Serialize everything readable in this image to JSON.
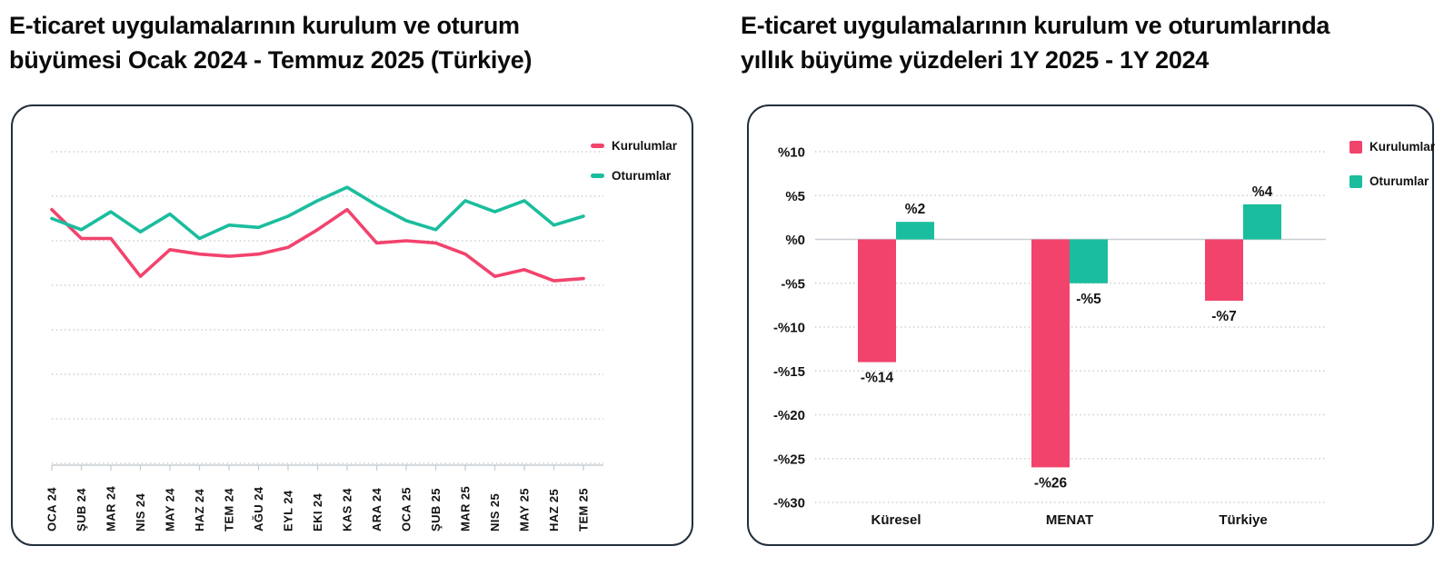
{
  "page": {
    "background": "#ffffff"
  },
  "colors": {
    "kurulumlar_pink": "#F2436D",
    "oturumlar_teal": "#1ABD9E",
    "grid_dotted": "#c5c9cf",
    "axis_line": "#c9cdd2",
    "text": "#121212",
    "card_border": "#232e3b"
  },
  "left_panel": {
    "title": "E-ticaret uygulamalarının kurulum ve oturum\nbüyümesi Ocak 2024 - Temmuz 2025 (Türkiye)"
  },
  "right_panel": {
    "title": "E-ticaret uygulamalarının kurulum ve oturumlarında\nyıllık büyüme yüzdeleri 1Y 2025 - 1Y 2024"
  },
  "chart_data": [
    {
      "type": "line",
      "title": "E-ticaret uygulamalarının kurulum ve oturum büyümesi Ocak 2024 - Temmuz 2025 (Türkiye)",
      "categories": [
        "OCA 24",
        "ŞUB 24",
        "MAR 24",
        "NIS 24",
        "MAY 24",
        "HAZ 24",
        "TEM 24",
        "AĞU 24",
        "EYL 24",
        "EKI 24",
        "KAS 24",
        "ARA 24",
        "OCA 25",
        "ŞUB 25",
        "MAR 25",
        "NIS 25",
        "MAY 25",
        "HAZ 25",
        "TEM 25"
      ],
      "series": [
        {
          "name": "Kurulumlar",
          "color": "#F2436D",
          "values": [
            57,
            50.5,
            50.5,
            42,
            48,
            47,
            46.5,
            47,
            48.5,
            52.5,
            57,
            49.5,
            50,
            49.5,
            47,
            42,
            43.5,
            41,
            41.5
          ]
        },
        {
          "name": "Oturumlar",
          "color": "#1ABD9E",
          "values": [
            55,
            52.5,
            56.5,
            52,
            56,
            50.5,
            53.5,
            53,
            55.5,
            59,
            62,
            58,
            54.5,
            52.5,
            59,
            56.5,
            59,
            53.5,
            55.5
          ]
        }
      ],
      "y_axis": {
        "labels_visible": false,
        "gridline_count": 8,
        "grid_step": 10,
        "range": [
          0,
          75
        ],
        "note": "y axis is unlabeled in the source; series values are estimated on a relative scale where the dotted gridlines sit 10 units apart above the baseline"
      },
      "legend_position": "top-right",
      "grid": "dotted-horizontal"
    },
    {
      "type": "bar",
      "title": "E-ticaret uygulamalarının kurulum ve oturumlarında yıllık büyüme yüzdeleri 1Y 2025 - 1Y 2024",
      "categories": [
        "Küresel",
        "MENAT",
        "Türkiye"
      ],
      "series": [
        {
          "name": "Kurulumlar",
          "color": "#F2436D",
          "values": [
            -14,
            -26,
            -7
          ],
          "data_labels": [
            "-%14",
            "-%26",
            "-%7"
          ]
        },
        {
          "name": "Oturumlar",
          "color": "#1ABD9E",
          "values": [
            2,
            -5,
            4
          ],
          "data_labels": [
            "%2",
            "-%5",
            "%4"
          ]
        }
      ],
      "y_axis": {
        "tick_labels": [
          "%10",
          "%5",
          "%0",
          "-%5",
          "-%10",
          "-%15",
          "-%20",
          "-%25",
          "-%30"
        ],
        "tick_values": [
          10,
          5,
          0,
          -5,
          -10,
          -15,
          -20,
          -25,
          -30
        ],
        "range": [
          -30,
          10
        ]
      },
      "legend_position": "top-right",
      "grid": "dotted-horizontal",
      "zero_line": "solid"
    }
  ]
}
